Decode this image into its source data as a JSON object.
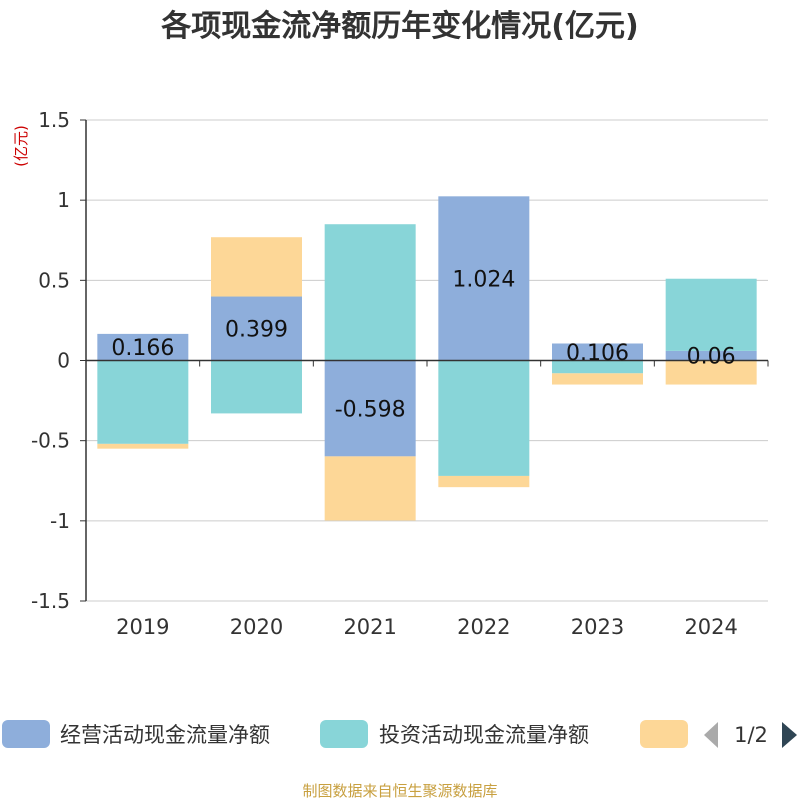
{
  "chart_data": {
    "type": "bar",
    "stacked": true,
    "title": "各项现金流净额历年变化情况(亿元)",
    "ylabel": "(亿元)",
    "xlabel": "",
    "categories": [
      "2019",
      "2020",
      "2021",
      "2022",
      "2023",
      "2024"
    ],
    "ylim": [
      -1.5,
      1.5
    ],
    "yticks": [
      1.5,
      1,
      0.5,
      0,
      -0.5,
      -1,
      -1.5
    ],
    "ytick_labels": [
      "1.5",
      "1",
      "0.5",
      "0",
      "-0.5",
      "-1",
      "-1.5"
    ],
    "grid": true,
    "legend_position": "bottom",
    "series": [
      {
        "name": "经营活动现金流量净额",
        "color": "#8eaedb",
        "values": [
          0.166,
          0.399,
          -0.598,
          1.024,
          0.106,
          0.06
        ],
        "labels": [
          "0.166",
          "0.399",
          "-0.598",
          "1.024",
          "0.106",
          "0.06"
        ]
      },
      {
        "name": "投资活动现金流量净额",
        "color": "#88d5d8",
        "values": [
          -0.52,
          -0.33,
          0.85,
          -0.72,
          -0.08,
          0.45
        ]
      },
      {
        "name": "",
        "color": "#fdd797",
        "values": [
          -0.03,
          0.37,
          -0.4,
          -0.07,
          -0.07,
          -0.15
        ]
      }
    ]
  },
  "legend": {
    "pager_text": "1/2"
  },
  "source_text": "制图数据来自恒生聚源数据库"
}
